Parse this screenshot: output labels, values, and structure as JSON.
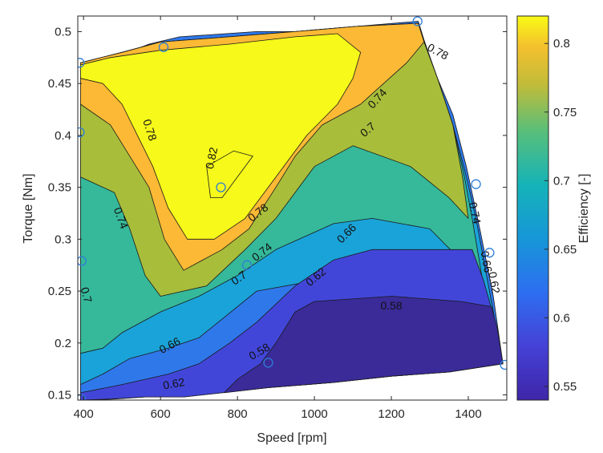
{
  "chart_data": {
    "type": "contourf",
    "xlabel": "Speed [rpm]",
    "ylabel": "Torque [Nm]",
    "colorbar_label": "Efficiency [-]",
    "xlim": [
      385,
      1500
    ],
    "ylim": [
      0.145,
      0.515
    ],
    "clim": [
      0.54,
      0.82
    ],
    "x_ticks": [
      400,
      600,
      800,
      1000,
      1200,
      1400
    ],
    "y_ticks": [
      0.15,
      0.2,
      0.25,
      0.3,
      0.35,
      0.4,
      0.45,
      0.5
    ],
    "y_tick_labels": [
      "0.15",
      "0.2",
      "0.25",
      "0.3",
      "0.35",
      "0.4",
      "0.45",
      "0.5"
    ],
    "colorbar_ticks": [
      0.55,
      0.6,
      0.65,
      0.7,
      0.75,
      0.8
    ],
    "colorbar_tick_labels": [
      "0.55",
      "0.6",
      "0.65",
      "0.7",
      "0.75",
      "0.8"
    ],
    "contour_levels": [
      0.58,
      0.62,
      0.66,
      0.7,
      0.74,
      0.78,
      0.82
    ],
    "colors": {
      "below_0.58": "#3a2b99",
      "0.58_0.62": "#4246d8",
      "0.62_0.66": "#2f78ea",
      "0.66_0.70": "#1aa3d8",
      "0.70_0.74": "#35b99a",
      "0.74_0.78": "#a8bd3a",
      "0.78_0.82": "#fbb935",
      "above_0.82": "#f6f919"
    },
    "contour_labels": [
      {
        "text": "0.78",
        "x": 1320,
        "y": 0.48,
        "angle": 28
      },
      {
        "text": "0.74",
        "x": 1165,
        "y": 0.435,
        "angle": -48
      },
      {
        "text": "0.7",
        "x": 1140,
        "y": 0.405,
        "angle": -40
      },
      {
        "text": "0.78",
        "x": 570,
        "y": 0.405,
        "angle": 72
      },
      {
        "text": "0.82",
        "x": 735,
        "y": 0.378,
        "angle": -78
      },
      {
        "text": "0.74",
        "x": 1415,
        "y": 0.325,
        "angle": 78
      },
      {
        "text": "0.74",
        "x": 495,
        "y": 0.32,
        "angle": 70
      },
      {
        "text": "0.78",
        "x": 855,
        "y": 0.325,
        "angle": -38
      },
      {
        "text": "0.66",
        "x": 1085,
        "y": 0.305,
        "angle": -45
      },
      {
        "text": "0.74",
        "x": 865,
        "y": 0.287,
        "angle": -38
      },
      {
        "text": "0.66",
        "x": 1445,
        "y": 0.278,
        "angle": 80
      },
      {
        "text": "0.7",
        "x": 805,
        "y": 0.262,
        "angle": -35
      },
      {
        "text": "0.62",
        "x": 1005,
        "y": 0.263,
        "angle": -40
      },
      {
        "text": "0.62",
        "x": 1465,
        "y": 0.258,
        "angle": 80
      },
      {
        "text": "0.7",
        "x": 405,
        "y": 0.246,
        "angle": 75
      },
      {
        "text": "0.58",
        "x": 1200,
        "y": 0.235,
        "angle": 0
      },
      {
        "text": "0.66",
        "x": 625,
        "y": 0.197,
        "angle": -28
      },
      {
        "text": "0.58",
        "x": 858,
        "y": 0.191,
        "angle": -30
      },
      {
        "text": "0.62",
        "x": 635,
        "y": 0.16,
        "angle": -10
      }
    ],
    "markers": [
      {
        "x": 390,
        "y": 0.47
      },
      {
        "x": 390,
        "y": 0.403
      },
      {
        "x": 395,
        "y": 0.279
      },
      {
        "x": 393,
        "y": 0.146
      },
      {
        "x": 608,
        "y": 0.485
      },
      {
        "x": 757,
        "y": 0.35
      },
      {
        "x": 825,
        "y": 0.275
      },
      {
        "x": 880,
        "y": 0.181
      },
      {
        "x": 1268,
        "y": 0.51
      },
      {
        "x": 1420,
        "y": 0.353
      },
      {
        "x": 1455,
        "y": 0.287
      },
      {
        "x": 1495,
        "y": 0.179
      }
    ],
    "regions": [
      {
        "level": "0.62_0.66",
        "points": [
          [
            392,
            0.25
          ],
          [
            400,
            0.47
          ],
          [
            412,
            0.47
          ],
          [
            480,
            0.475
          ],
          [
            570,
            0.488
          ],
          [
            650,
            0.495
          ],
          [
            850,
            0.5
          ],
          [
            1010,
            0.5
          ],
          [
            1110,
            0.505
          ],
          [
            1270,
            0.51
          ],
          [
            1285,
            0.492
          ],
          [
            1320,
            0.455
          ],
          [
            1360,
            0.42
          ],
          [
            1395,
            0.37
          ],
          [
            1430,
            0.31
          ],
          [
            1465,
            0.245
          ],
          [
            1490,
            0.18
          ],
          [
            1350,
            0.172
          ],
          [
            1200,
            0.168
          ],
          [
            1050,
            0.162
          ],
          [
            880,
            0.157
          ],
          [
            760,
            0.152
          ],
          [
            660,
            0.148
          ],
          [
            560,
            0.148
          ],
          [
            480,
            0.146
          ],
          [
            392,
            0.145
          ]
        ]
      },
      {
        "level": "0.66_0.70",
        "points": [
          [
            392,
            0.47
          ],
          [
            500,
            0.48
          ],
          [
            600,
            0.49
          ],
          [
            780,
            0.495
          ],
          [
            950,
            0.5
          ],
          [
            1110,
            0.505
          ],
          [
            1270,
            0.508
          ],
          [
            1285,
            0.49
          ],
          [
            1320,
            0.455
          ],
          [
            1360,
            0.41
          ],
          [
            1395,
            0.36
          ],
          [
            1420,
            0.32
          ],
          [
            1450,
            0.26
          ],
          [
            1470,
            0.22
          ],
          [
            1380,
            0.23
          ],
          [
            1200,
            0.25
          ],
          [
            1000,
            0.26
          ],
          [
            850,
            0.25
          ],
          [
            750,
            0.22
          ],
          [
            700,
            0.205
          ],
          [
            620,
            0.195
          ],
          [
            520,
            0.185
          ],
          [
            450,
            0.17
          ],
          [
            392,
            0.16
          ]
        ]
      },
      {
        "level": "0.70_0.74",
        "points": [
          [
            392,
            0.47
          ],
          [
            500,
            0.48
          ],
          [
            600,
            0.49
          ],
          [
            780,
            0.495
          ],
          [
            950,
            0.5
          ],
          [
            1110,
            0.505
          ],
          [
            1270,
            0.508
          ],
          [
            1285,
            0.49
          ],
          [
            1320,
            0.455
          ],
          [
            1360,
            0.41
          ],
          [
            1390,
            0.36
          ],
          [
            1410,
            0.32
          ],
          [
            1435,
            0.265
          ],
          [
            1380,
            0.28
          ],
          [
            1300,
            0.31
          ],
          [
            1150,
            0.32
          ],
          [
            1050,
            0.315
          ],
          [
            900,
            0.29
          ],
          [
            800,
            0.265
          ],
          [
            700,
            0.245
          ],
          [
            600,
            0.23
          ],
          [
            500,
            0.21
          ],
          [
            450,
            0.195
          ],
          [
            392,
            0.19
          ]
        ]
      },
      {
        "level": "0.74_0.78",
        "points": [
          [
            392,
            0.47
          ],
          [
            500,
            0.48
          ],
          [
            600,
            0.49
          ],
          [
            780,
            0.495
          ],
          [
            950,
            0.5
          ],
          [
            1110,
            0.505
          ],
          [
            1270,
            0.508
          ],
          [
            1285,
            0.49
          ],
          [
            1320,
            0.455
          ],
          [
            1360,
            0.41
          ],
          [
            1385,
            0.36
          ],
          [
            1400,
            0.32
          ],
          [
            1350,
            0.34
          ],
          [
            1250,
            0.37
          ],
          [
            1100,
            0.39
          ],
          [
            1000,
            0.37
          ],
          [
            900,
            0.32
          ],
          [
            820,
            0.29
          ],
          [
            720,
            0.255
          ],
          [
            600,
            0.245
          ],
          [
            560,
            0.265
          ],
          [
            520,
            0.31
          ],
          [
            480,
            0.345
          ],
          [
            392,
            0.36
          ]
        ]
      },
      {
        "level": "0.78_0.82",
        "points": [
          [
            392,
            0.47
          ],
          [
            500,
            0.48
          ],
          [
            600,
            0.49
          ],
          [
            780,
            0.495
          ],
          [
            950,
            0.5
          ],
          [
            1110,
            0.505
          ],
          [
            1270,
            0.508
          ],
          [
            1285,
            0.49
          ],
          [
            1240,
            0.47
          ],
          [
            1180,
            0.45
          ],
          [
            1120,
            0.43
          ],
          [
            1020,
            0.41
          ],
          [
            950,
            0.38
          ],
          [
            900,
            0.35
          ],
          [
            830,
            0.31
          ],
          [
            760,
            0.29
          ],
          [
            660,
            0.27
          ],
          [
            610,
            0.3
          ],
          [
            570,
            0.35
          ],
          [
            520,
            0.38
          ],
          [
            470,
            0.41
          ],
          [
            392,
            0.43
          ]
        ]
      },
      {
        "level": "above_0.82",
        "points": [
          [
            392,
            0.468
          ],
          [
            470,
            0.475
          ],
          [
            600,
            0.482
          ],
          [
            780,
            0.488
          ],
          [
            950,
            0.495
          ],
          [
            1060,
            0.498
          ],
          [
            1120,
            0.48
          ],
          [
            1100,
            0.455
          ],
          [
            1060,
            0.43
          ],
          [
            980,
            0.4
          ],
          [
            900,
            0.36
          ],
          [
            820,
            0.32
          ],
          [
            740,
            0.3
          ],
          [
            670,
            0.3
          ],
          [
            620,
            0.33
          ],
          [
            580,
            0.37
          ],
          [
            540,
            0.4
          ],
          [
            500,
            0.43
          ],
          [
            450,
            0.45
          ],
          [
            392,
            0.455
          ]
        ]
      },
      {
        "level": "0.82_peak",
        "points": [
          [
            720,
            0.37
          ],
          [
            790,
            0.385
          ],
          [
            840,
            0.38
          ],
          [
            760,
            0.34
          ],
          [
            730,
            0.34
          ]
        ]
      },
      {
        "level": "0.58_0.62",
        "points": [
          [
            392,
            0.145
          ],
          [
            470,
            0.146
          ],
          [
            560,
            0.148
          ],
          [
            660,
            0.148
          ],
          [
            760,
            0.152
          ],
          [
            880,
            0.157
          ],
          [
            1050,
            0.162
          ],
          [
            1200,
            0.168
          ],
          [
            1350,
            0.172
          ],
          [
            1490,
            0.18
          ],
          [
            1470,
            0.22
          ],
          [
            1440,
            0.26
          ],
          [
            1410,
            0.29
          ],
          [
            1300,
            0.29
          ],
          [
            1150,
            0.29
          ],
          [
            1050,
            0.28
          ],
          [
            950,
            0.255
          ],
          [
            850,
            0.22
          ],
          [
            780,
            0.2
          ],
          [
            700,
            0.18
          ],
          [
            620,
            0.17
          ],
          [
            500,
            0.16
          ],
          [
            392,
            0.152
          ]
        ]
      },
      {
        "level": "below_0.58",
        "points": [
          [
            765,
            0.152
          ],
          [
            880,
            0.157
          ],
          [
            1050,
            0.162
          ],
          [
            1200,
            0.168
          ],
          [
            1350,
            0.172
          ],
          [
            1490,
            0.18
          ],
          [
            1475,
            0.215
          ],
          [
            1460,
            0.235
          ],
          [
            1380,
            0.24
          ],
          [
            1200,
            0.245
          ],
          [
            1000,
            0.24
          ],
          [
            950,
            0.23
          ],
          [
            900,
            0.2
          ],
          [
            860,
            0.18
          ],
          [
            800,
            0.165
          ]
        ]
      }
    ]
  }
}
